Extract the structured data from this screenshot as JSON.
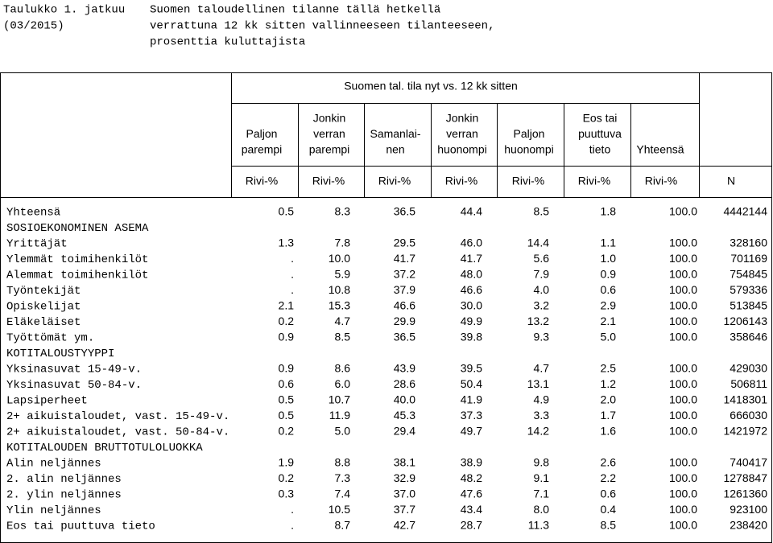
{
  "header": {
    "left": [
      "Taulukko 1. jatkuu",
      "(03/2015)"
    ],
    "right": [
      "Suomen taloudellinen tilanne tällä hetkellä",
      "verrattuna 12 kk sitten vallinneeseen tilanteeseen,",
      "prosenttia kuluttajista"
    ]
  },
  "table": {
    "group_header": "Suomen tal. tila nyt vs. 12 kk sitten",
    "columns": [
      [
        "Paljon",
        "parempi"
      ],
      [
        "Jonkin",
        "verran",
        "parempi"
      ],
      [
        "Samanlai-",
        "nen"
      ],
      [
        "Jonkin",
        "verran",
        "huonompi"
      ],
      [
        "Paljon",
        "huonompi"
      ],
      [
        "Eos tai",
        "puuttuva",
        "tieto"
      ],
      [
        "Yhteensä"
      ]
    ],
    "units": [
      "Rivi-%",
      "Rivi-%",
      "Rivi-%",
      "Rivi-%",
      "Rivi-%",
      "Rivi-%",
      "Rivi-%",
      "N"
    ],
    "rows": [
      [
        "Yhteensä",
        "0.5",
        "8.3",
        "36.5",
        "44.4",
        "8.5",
        "1.8",
        "100.0",
        "4442144"
      ],
      [
        "SOSIOEKONOMINEN ASEMA"
      ],
      [
        "Yrittäjät",
        "1.3",
        "7.8",
        "29.5",
        "46.0",
        "14.4",
        "1.1",
        "100.0",
        "328160"
      ],
      [
        "Ylemmät toimihenkilöt",
        ".",
        "10.0",
        "41.7",
        "41.7",
        "5.6",
        "1.0",
        "100.0",
        "701169"
      ],
      [
        "Alemmat toimihenkilöt",
        ".",
        "5.9",
        "37.2",
        "48.0",
        "7.9",
        "0.9",
        "100.0",
        "754845"
      ],
      [
        "Työntekijät",
        ".",
        "10.8",
        "37.9",
        "46.6",
        "4.0",
        "0.6",
        "100.0",
        "579336"
      ],
      [
        "Opiskelijat",
        "2.1",
        "15.3",
        "46.6",
        "30.0",
        "3.2",
        "2.9",
        "100.0",
        "513845"
      ],
      [
        "Eläkeläiset",
        "0.2",
        "4.7",
        "29.9",
        "49.9",
        "13.2",
        "2.1",
        "100.0",
        "1206143"
      ],
      [
        "Työttömät ym.",
        "0.9",
        "8.5",
        "36.5",
        "39.8",
        "9.3",
        "5.0",
        "100.0",
        "358646"
      ],
      [
        "KOTITALOUSTYYPPI"
      ],
      [
        "Yksinasuvat 15-49-v.",
        "0.9",
        "8.6",
        "43.9",
        "39.5",
        "4.7",
        "2.5",
        "100.0",
        "429030"
      ],
      [
        "Yksinasuvat 50-84-v.",
        "0.6",
        "6.0",
        "28.6",
        "50.4",
        "13.1",
        "1.2",
        "100.0",
        "506811"
      ],
      [
        "Lapsiperheet",
        "0.5",
        "10.7",
        "40.0",
        "41.9",
        "4.9",
        "2.0",
        "100.0",
        "1418301"
      ],
      [
        "2+ aikuistaloudet, vast. 15-49-v.",
        "0.5",
        "11.9",
        "45.3",
        "37.3",
        "3.3",
        "1.7",
        "100.0",
        "666030"
      ],
      [
        "2+ aikuistaloudet, vast. 50-84-v.",
        "0.2",
        "5.0",
        "29.4",
        "49.7",
        "14.2",
        "1.6",
        "100.0",
        "1421972"
      ],
      [
        "KOTITALOUDEN BRUTTOTULOLUOKKA"
      ],
      [
        "Alin neljännes",
        "1.9",
        "8.8",
        "38.1",
        "38.9",
        "9.8",
        "2.6",
        "100.0",
        "740417"
      ],
      [
        "2. alin neljännes",
        "0.2",
        "7.3",
        "32.9",
        "48.2",
        "9.1",
        "2.2",
        "100.0",
        "1278847"
      ],
      [
        "2. ylin neljännes",
        "0.3",
        "7.4",
        "37.0",
        "47.6",
        "7.1",
        "0.6",
        "100.0",
        "1261360"
      ],
      [
        "Ylin neljännes",
        ".",
        "10.5",
        "37.7",
        "43.4",
        "8.0",
        "0.4",
        "100.0",
        "923100"
      ],
      [
        "Eos tai puuttuva tieto",
        ".",
        "8.7",
        "42.7",
        "28.7",
        "11.3",
        "8.5",
        "100.0",
        "238420"
      ]
    ]
  }
}
